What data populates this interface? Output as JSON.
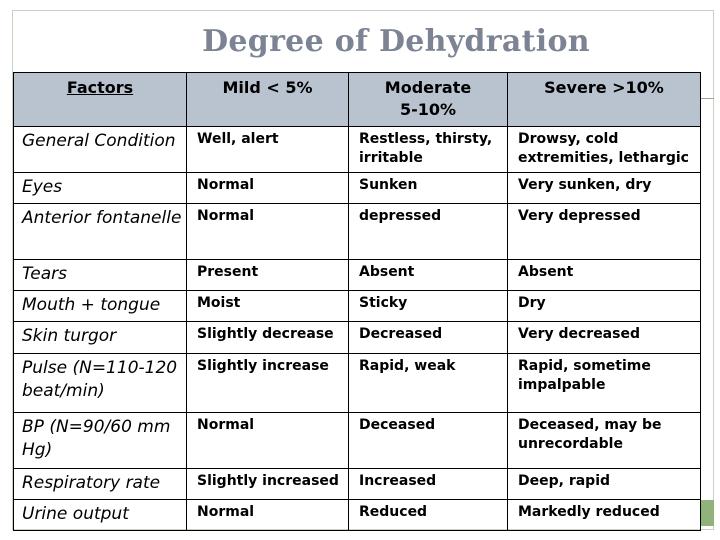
{
  "title": "Degree of Dehydration",
  "headers": {
    "factors": "Factors",
    "mild": "Mild < 5%",
    "moderate_line1": "Moderate",
    "moderate_line2": "5-10%",
    "severe": "Severe >10%"
  },
  "rows": [
    {
      "factor": "General Condition",
      "mild": "Well, alert",
      "moderate": "Restless, thirsty, irritable",
      "severe": "Drowsy, cold extremities, lethargic"
    },
    {
      "factor": "Eyes",
      "mild": "Normal",
      "moderate": "Sunken",
      "severe": "Very sunken, dry"
    },
    {
      "factor": "Anterior fontanelle",
      "mild": "Normal",
      "moderate": "depressed",
      "severe": "Very depressed"
    },
    {
      "factor": "Tears",
      "mild": "Present",
      "moderate": "Absent",
      "severe": "Absent"
    },
    {
      "factor": "Mouth + tongue",
      "mild": "Moist",
      "moderate": "Sticky",
      "severe": "Dry"
    },
    {
      "factor": "Skin turgor",
      "mild": "Slightly decrease",
      "moderate": "Decreased",
      "severe": "Very decreased"
    },
    {
      "factor": "Pulse (N=110-120 beat/min)",
      "mild": "Slightly increase",
      "moderate": "Rapid, weak",
      "severe": "Rapid, sometime impalpable"
    },
    {
      "factor": "BP (N=90/60 mm Hg)",
      "mild": "Normal",
      "moderate": "Deceased",
      "severe": "Deceased, may be unrecordable"
    },
    {
      "factor": "Respiratory rate",
      "mild": "Slightly increased",
      "moderate": "Increased",
      "severe": "Deep, rapid"
    },
    {
      "factor": "Urine output",
      "mild": "Normal",
      "moderate": "Reduced",
      "severe": "Markedly reduced"
    }
  ]
}
